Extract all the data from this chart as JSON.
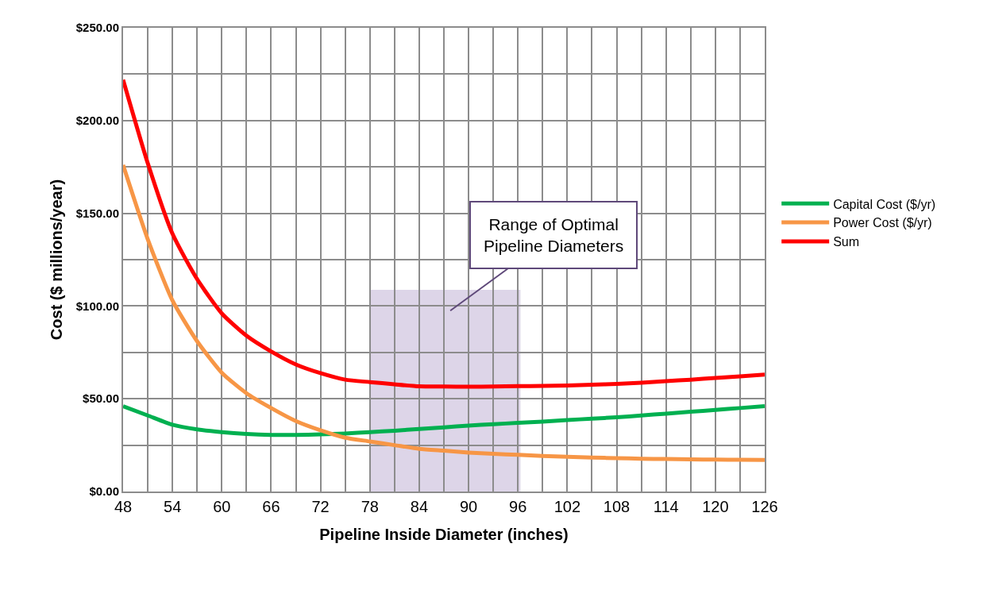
{
  "chart_data": {
    "type": "line",
    "xlabel": "Pipeline Inside Diameter (inches)",
    "ylabel": "Cost ($ millions/year)",
    "x": [
      48,
      51,
      54,
      57,
      60,
      63,
      66,
      69,
      72,
      75,
      78,
      81,
      84,
      87,
      90,
      93,
      96,
      99,
      102,
      105,
      108,
      111,
      114,
      117,
      120,
      123,
      126
    ],
    "series": [
      {
        "name": "Capital Cost ($/yr)",
        "color": "#00b050",
        "values": [
          46,
          41,
          36,
          33.5,
          32,
          31,
          30.5,
          30.5,
          30.8,
          31.3,
          32,
          32.8,
          33.7,
          34.6,
          35.5,
          36.3,
          37,
          37.7,
          38.5,
          39.3,
          40,
          41,
          42,
          43,
          44,
          45,
          46
        ]
      },
      {
        "name": "Power Cost ($/yr)",
        "color": "#f79646",
        "values": [
          176,
          136,
          103,
          81,
          64,
          53,
          45,
          38,
          33,
          29,
          27,
          25,
          23,
          22,
          21,
          20.3,
          19.8,
          19.2,
          18.7,
          18.3,
          18,
          17.7,
          17.5,
          17.3,
          17.2,
          17.1,
          17
        ]
      },
      {
        "name": "Sum",
        "color": "#ff0000",
        "values": [
          222,
          177,
          139,
          114.5,
          96,
          84,
          75.5,
          68.5,
          63.8,
          60.3,
          59,
          57.8,
          56.7,
          56.6,
          56.5,
          56.6,
          56.8,
          56.9,
          57.2,
          57.6,
          58,
          58.7,
          59.5,
          60.3,
          61.2,
          62.1,
          63
        ]
      }
    ],
    "xlim": [
      48,
      126
    ],
    "xticks": [
      48,
      {
        "value": 51,
        "label": null
      },
      54,
      {
        "value": 57,
        "label": null
      },
      60,
      {
        "value": 63,
        "label": null
      },
      66,
      {
        "value": 69,
        "label": null
      },
      72,
      {
        "value": 75,
        "label": null
      },
      78,
      {
        "value": 81,
        "label": null
      },
      84,
      {
        "value": 87,
        "label": null
      },
      90,
      {
        "value": 93,
        "label": null
      },
      96,
      {
        "value": 99,
        "label": null
      },
      102,
      {
        "value": 105,
        "label": null
      },
      108,
      {
        "value": 111,
        "label": null
      },
      114,
      {
        "value": 117,
        "label": null
      },
      120,
      {
        "value": 123,
        "label": null
      },
      126
    ],
    "ylim": [
      0,
      250
    ],
    "yticks": [
      {
        "value": 0,
        "label": "$0.00"
      },
      {
        "value": 25,
        "label": null
      },
      {
        "value": 50,
        "label": "$50.00"
      },
      {
        "value": 75,
        "label": null
      },
      {
        "value": 100,
        "label": "$100.00"
      },
      {
        "value": 125,
        "label": null
      },
      {
        "value": 150,
        "label": "$150.00"
      },
      {
        "value": 175,
        "label": null
      },
      {
        "value": 200,
        "label": "$200.00"
      },
      {
        "value": 225,
        "label": null
      },
      {
        "value": 250,
        "label": "$250.00"
      }
    ],
    "bands": [
      {
        "axis": "x",
        "from": 78,
        "to": 96.3,
        "color": "#ddd5e8"
      }
    ],
    "annotations": [
      "Range of Optimal\nPipeline Diameters"
    ],
    "grid": true,
    "legend": "right",
    "marker": "none",
    "line_style": "solid"
  }
}
